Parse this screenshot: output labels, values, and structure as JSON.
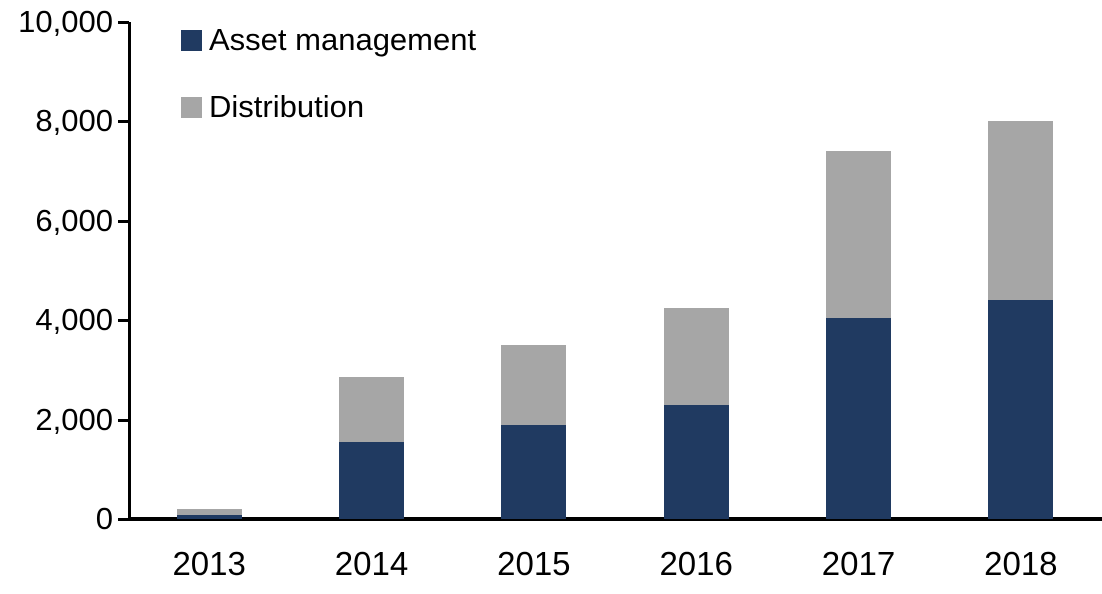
{
  "chart_data": {
    "type": "bar",
    "stacked": true,
    "title": "",
    "xlabel": "",
    "ylabel": "",
    "categories": [
      "2013",
      "2014",
      "2015",
      "2016",
      "2017",
      "2018"
    ],
    "series": [
      {
        "name": "Asset management",
        "color": "#203A61",
        "values": [
          80,
          1550,
          1900,
          2300,
          4050,
          4400
        ]
      },
      {
        "name": "Distribution",
        "color": "#A6A6A6",
        "values": [
          120,
          1300,
          1600,
          1950,
          3350,
          3600
        ]
      }
    ],
    "ylim": [
      0,
      10000
    ],
    "y_ticks": [
      0,
      2000,
      4000,
      6000,
      8000,
      10000
    ],
    "y_tick_labels": [
      "0",
      "2,000",
      "4,000",
      "6,000",
      "8,000",
      "10,000"
    ],
    "grid": false,
    "legend_position": "top-left-inside",
    "axis_color": "#000000",
    "text_color": "#000000",
    "background": "#FFFFFF"
  }
}
